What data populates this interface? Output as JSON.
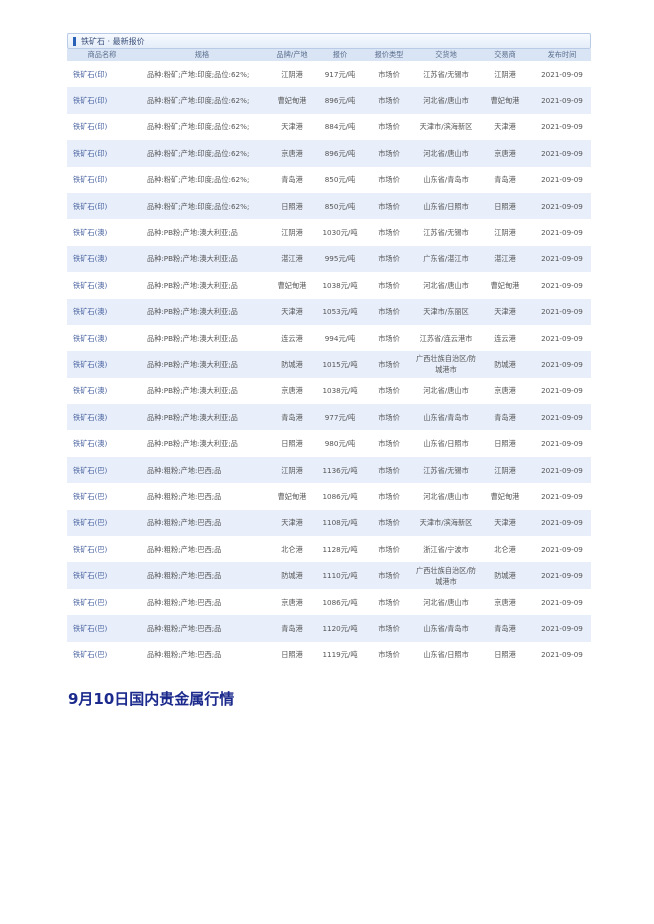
{
  "panel": {
    "title": "铁矿石 · 最新报价"
  },
  "columns": [
    "商品名称",
    "规格",
    "品牌/产地",
    "报价",
    "报价类型",
    "交货地",
    "交易商",
    "发布时间"
  ],
  "rows": [
    [
      "铁矿石(印)",
      "品种:粉矿;产地:印度;品位:62%;",
      "江阴港",
      "917元/吨",
      "市场价",
      "江苏省/无锡市",
      "江阴港",
      "2021-09-09"
    ],
    [
      "铁矿石(印)",
      "品种:粉矿;产地:印度;品位:62%;",
      "曹妃甸港",
      "896元/吨",
      "市场价",
      "河北省/唐山市",
      "曹妃甸港",
      "2021-09-09"
    ],
    [
      "铁矿石(印)",
      "品种:粉矿;产地:印度;品位:62%;",
      "天津港",
      "884元/吨",
      "市场价",
      "天津市/滨海新区",
      "天津港",
      "2021-09-09"
    ],
    [
      "铁矿石(印)",
      "品种:粉矿;产地:印度;品位:62%;",
      "京唐港",
      "896元/吨",
      "市场价",
      "河北省/唐山市",
      "京唐港",
      "2021-09-09"
    ],
    [
      "铁矿石(印)",
      "品种:粉矿;产地:印度;品位:62%;",
      "青岛港",
      "850元/吨",
      "市场价",
      "山东省/青岛市",
      "青岛港",
      "2021-09-09"
    ],
    [
      "铁矿石(印)",
      "品种:粉矿;产地:印度;品位:62%;",
      "日照港",
      "850元/吨",
      "市场价",
      "山东省/日照市",
      "日照港",
      "2021-09-09"
    ],
    [
      "铁矿石(澳)",
      "品种:PB粉;产地:澳大利亚;品",
      "江阴港",
      "1030元/吨",
      "市场价",
      "江苏省/无锡市",
      "江阴港",
      "2021-09-09"
    ],
    [
      "铁矿石(澳)",
      "品种:PB粉;产地:澳大利亚;品",
      "湛江港",
      "995元/吨",
      "市场价",
      "广东省/湛江市",
      "湛江港",
      "2021-09-09"
    ],
    [
      "铁矿石(澳)",
      "品种:PB粉;产地:澳大利亚;品",
      "曹妃甸港",
      "1038元/吨",
      "市场价",
      "河北省/唐山市",
      "曹妃甸港",
      "2021-09-09"
    ],
    [
      "铁矿石(澳)",
      "品种:PB粉;产地:澳大利亚;品",
      "天津港",
      "1053元/吨",
      "市场价",
      "天津市/东丽区",
      "天津港",
      "2021-09-09"
    ],
    [
      "铁矿石(澳)",
      "品种:PB粉;产地:澳大利亚;品",
      "连云港",
      "994元/吨",
      "市场价",
      "江苏省/连云港市",
      "连云港",
      "2021-09-09"
    ],
    [
      "铁矿石(澳)",
      "品种:PB粉;产地:澳大利亚;品",
      "防城港",
      "1015元/吨",
      "市场价",
      "广西壮族自治区/防城港市",
      "防城港",
      "2021-09-09"
    ],
    [
      "铁矿石(澳)",
      "品种:PB粉;产地:澳大利亚;品",
      "京唐港",
      "1038元/吨",
      "市场价",
      "河北省/唐山市",
      "京唐港",
      "2021-09-09"
    ],
    [
      "铁矿石(澳)",
      "品种:PB粉;产地:澳大利亚;品",
      "青岛港",
      "977元/吨",
      "市场价",
      "山东省/青岛市",
      "青岛港",
      "2021-09-09"
    ],
    [
      "铁矿石(澳)",
      "品种:PB粉;产地:澳大利亚;品",
      "日照港",
      "980元/吨",
      "市场价",
      "山东省/日照市",
      "日照港",
      "2021-09-09"
    ],
    [
      "铁矿石(巴)",
      "品种:粗粉;产地:巴西;品",
      "江阴港",
      "1136元/吨",
      "市场价",
      "江苏省/无锡市",
      "江阴港",
      "2021-09-09"
    ],
    [
      "铁矿石(巴)",
      "品种:粗粉;产地:巴西;品",
      "曹妃甸港",
      "1086元/吨",
      "市场价",
      "河北省/唐山市",
      "曹妃甸港",
      "2021-09-09"
    ],
    [
      "铁矿石(巴)",
      "品种:粗粉;产地:巴西;品",
      "天津港",
      "1108元/吨",
      "市场价",
      "天津市/滨海新区",
      "天津港",
      "2021-09-09"
    ],
    [
      "铁矿石(巴)",
      "品种:粗粉;产地:巴西;品",
      "北仑港",
      "1128元/吨",
      "市场价",
      "浙江省/宁波市",
      "北仑港",
      "2021-09-09"
    ],
    [
      "铁矿石(巴)",
      "品种:粗粉;产地:巴西;品",
      "防城港",
      "1110元/吨",
      "市场价",
      "广西壮族自治区/防城港市",
      "防城港",
      "2021-09-09"
    ],
    [
      "铁矿石(巴)",
      "品种:粗粉;产地:巴西;品",
      "京唐港",
      "1086元/吨",
      "市场价",
      "河北省/唐山市",
      "京唐港",
      "2021-09-09"
    ],
    [
      "铁矿石(巴)",
      "品种:粗粉;产地:巴西;品",
      "青岛港",
      "1120元/吨",
      "市场价",
      "山东省/青岛市",
      "青岛港",
      "2021-09-09"
    ],
    [
      "铁矿石(巴)",
      "品种:粗粉;产地:巴西;品",
      "日照港",
      "1119元/吨",
      "市场价",
      "山东省/日照市",
      "日照港",
      "2021-09-09"
    ]
  ],
  "section_heading": "9月10日国内贵金属行情",
  "colors": {
    "accent": "#2a5fb8",
    "heading": "#1b2a8c",
    "alt_row": "#e8effa"
  }
}
